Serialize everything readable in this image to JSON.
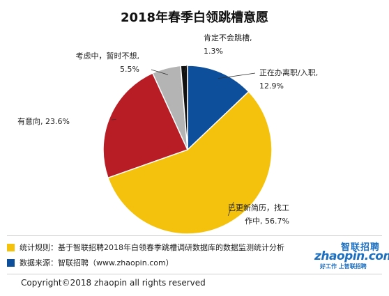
{
  "chart_data": {
    "type": "pie",
    "title": "2018年春季白领跳槽意愿",
    "slices": [
      {
        "label": "正在办离职/入职",
        "value": 12.9,
        "color": "#0e4f9c",
        "text_lines": [
          "正在办离职/入职,",
          "12.9%"
        ]
      },
      {
        "label": "已更新简历，找工作中",
        "value": 56.7,
        "color": "#f4c20d",
        "text_lines": [
          "已更新简历，找工",
          "作中, 56.7%"
        ]
      },
      {
        "label": "有意向",
        "value": 23.6,
        "color": "#b81c24",
        "text_lines": [
          "有意向, 23.6%"
        ]
      },
      {
        "label": "考虑中，暂时不想",
        "value": 5.5,
        "color": "#b4b4b4",
        "text_lines": [
          "考虑中，暂时不想,",
          "5.5%"
        ]
      },
      {
        "label": "肯定不会跳槽",
        "value": 1.3,
        "color": "#111111",
        "text_lines": [
          "肯定不会跳槽,",
          "1.3%"
        ]
      }
    ]
  },
  "notes": [
    {
      "color": "#f4c20d",
      "text": "统计规则：基于智联招聘2018年白领春季跳槽调研数据库的数据监测统计分析"
    },
    {
      "color": "#0e4f9c",
      "text": "数据来源：智联招聘（www.zhaopin.com）"
    }
  ],
  "footer": {
    "copyright": "Copyright©2018 zhaopin all rights reserved"
  },
  "logo": {
    "cn": "智联招聘",
    "en": "zhaopin.com",
    "slogan": "好工作 上智联招聘"
  }
}
